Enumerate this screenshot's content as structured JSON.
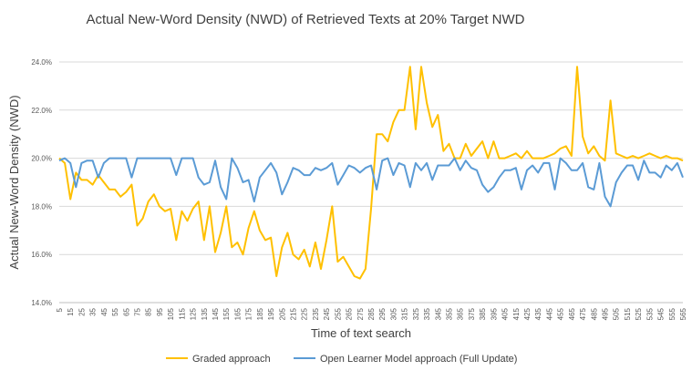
{
  "chart_data": {
    "type": "line",
    "title": "Actual New-Word Density (NWD) of Retrieved Texts at 20% Target NWD",
    "xlabel": "Time of text search",
    "ylabel": "Actual New-Word Density (NWD)",
    "ylim": [
      14.0,
      24.0
    ],
    "ytick_labels": [
      "14.0%",
      "16.0%",
      "18.0%",
      "20.0%",
      "22.0%",
      "24.0%"
    ],
    "ytick_values": [
      14,
      16,
      18,
      20,
      22,
      24
    ],
    "grid": "horizontal",
    "legend_position": "bottom",
    "x": [
      5,
      10,
      15,
      20,
      25,
      30,
      35,
      40,
      45,
      50,
      55,
      60,
      65,
      70,
      75,
      80,
      85,
      90,
      95,
      100,
      105,
      110,
      115,
      120,
      125,
      130,
      135,
      140,
      145,
      150,
      155,
      160,
      165,
      170,
      175,
      180,
      185,
      190,
      195,
      200,
      205,
      210,
      215,
      220,
      225,
      230,
      235,
      240,
      245,
      250,
      255,
      260,
      265,
      270,
      275,
      280,
      285,
      290,
      295,
      300,
      305,
      310,
      315,
      320,
      325,
      330,
      335,
      340,
      345,
      350,
      355,
      360,
      365,
      370,
      375,
      380,
      385,
      390,
      395,
      400,
      405,
      410,
      415,
      420,
      425,
      430,
      435,
      440,
      445,
      450,
      455,
      460,
      465,
      470,
      475,
      480,
      485,
      490,
      495,
      500,
      505,
      510,
      515,
      520,
      525,
      530,
      535,
      540,
      545,
      550,
      555,
      560,
      565
    ],
    "x_tick_labels": [
      "5",
      "15",
      "25",
      "35",
      "45",
      "55",
      "65",
      "75",
      "85",
      "95",
      "105",
      "115",
      "125",
      "135",
      "145",
      "155",
      "165",
      "175",
      "185",
      "195",
      "205",
      "215",
      "225",
      "235",
      "245",
      "255",
      "265",
      "275",
      "285",
      "295",
      "305",
      "315",
      "325",
      "335",
      "345",
      "355",
      "365",
      "375",
      "385",
      "395",
      "405",
      "415",
      "425",
      "435",
      "445",
      "455",
      "465",
      "475",
      "485",
      "495",
      "505",
      "515",
      "525",
      "535",
      "545",
      "555",
      "565"
    ],
    "series": [
      {
        "name": "Graded approach",
        "color": "#FFC000",
        "values": [
          20.0,
          19.8,
          18.3,
          19.4,
          19.1,
          19.1,
          18.9,
          19.3,
          19.0,
          18.7,
          18.7,
          18.4,
          18.6,
          18.9,
          17.2,
          17.5,
          18.2,
          18.5,
          18.0,
          17.8,
          17.9,
          16.6,
          17.8,
          17.4,
          17.9,
          18.2,
          16.6,
          18.0,
          16.1,
          16.9,
          18.0,
          16.3,
          16.5,
          16.0,
          17.1,
          17.8,
          17.0,
          16.6,
          16.7,
          15.1,
          16.3,
          16.9,
          16.0,
          15.8,
          16.2,
          15.5,
          16.5,
          15.4,
          16.6,
          18.0,
          15.7,
          15.9,
          15.5,
          15.1,
          15.0,
          15.4,
          17.9,
          21.0,
          21.0,
          20.7,
          21.5,
          22.0,
          22.0,
          23.8,
          21.2,
          23.8,
          22.3,
          21.3,
          21.8,
          20.3,
          20.6,
          20.0,
          20.0,
          20.6,
          20.1,
          20.4,
          20.7,
          20.0,
          20.7,
          20.0,
          20.0,
          20.1,
          20.2,
          20.0,
          20.3,
          20.0,
          20.0,
          20.0,
          20.1,
          20.2,
          20.4,
          20.5,
          20.1,
          23.8,
          20.9,
          20.2,
          20.5,
          20.1,
          19.9,
          22.4,
          20.2,
          20.1,
          20.0,
          20.1,
          20.0,
          20.1,
          20.2,
          20.1,
          20.0,
          20.1,
          20.0,
          20.0,
          19.9
        ]
      },
      {
        "name": "Open Learner Model approach (Full Update)",
        "color": "#5B9BD5",
        "values": [
          19.9,
          20.0,
          19.8,
          18.8,
          19.8,
          19.9,
          19.9,
          19.2,
          19.8,
          20.0,
          20.0,
          20.0,
          20.0,
          19.2,
          20.0,
          20.0,
          20.0,
          20.0,
          20.0,
          20.0,
          20.0,
          19.3,
          20.0,
          20.0,
          20.0,
          19.2,
          18.9,
          19.0,
          19.9,
          18.8,
          18.3,
          20.0,
          19.6,
          19.0,
          19.1,
          18.2,
          19.2,
          19.5,
          19.8,
          19.4,
          18.5,
          19.0,
          19.6,
          19.5,
          19.3,
          19.3,
          19.6,
          19.5,
          19.6,
          19.8,
          18.9,
          19.3,
          19.7,
          19.6,
          19.4,
          19.6,
          19.7,
          18.7,
          19.9,
          20.0,
          19.3,
          19.8,
          19.7,
          18.8,
          19.8,
          19.5,
          19.8,
          19.1,
          19.7,
          19.7,
          19.7,
          20.0,
          19.5,
          19.9,
          19.6,
          19.5,
          18.9,
          18.6,
          18.8,
          19.2,
          19.5,
          19.5,
          19.6,
          18.7,
          19.5,
          19.7,
          19.4,
          19.8,
          19.8,
          18.7,
          20.0,
          19.8,
          19.5,
          19.5,
          19.8,
          18.8,
          18.7,
          19.8,
          18.4,
          18.0,
          19.0,
          19.4,
          19.7,
          19.7,
          19.1,
          19.9,
          19.4,
          19.4,
          19.2,
          19.7,
          19.5,
          19.8,
          19.2
        ]
      }
    ]
  }
}
